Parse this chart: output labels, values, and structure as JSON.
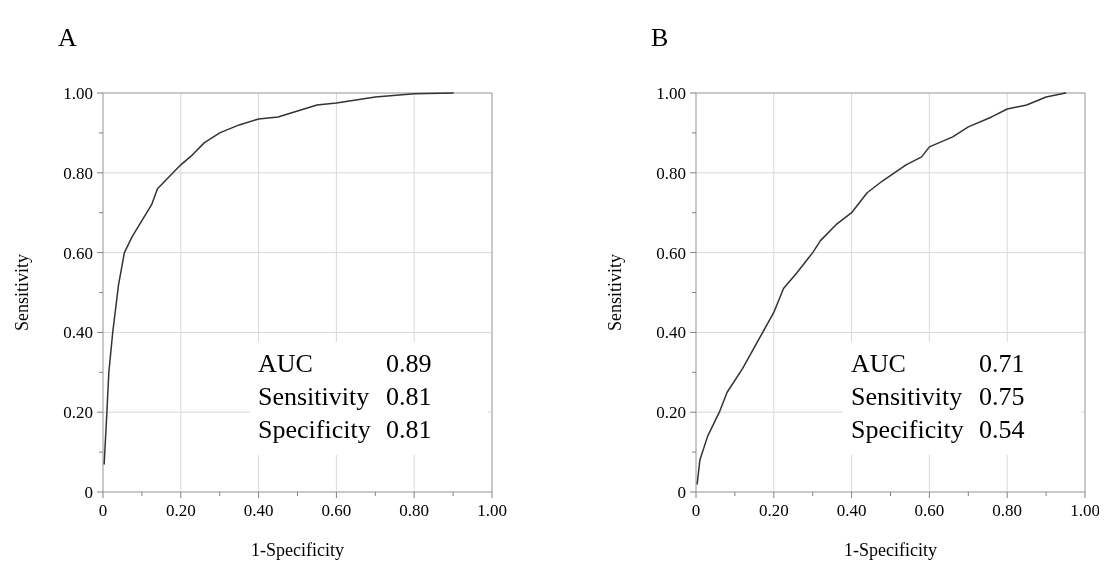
{
  "chart_data": [
    {
      "type": "line",
      "title": "A",
      "xlabel": "1-Specificity",
      "ylabel": "Sensitivity",
      "xlim": [
        0,
        1
      ],
      "ylim": [
        0,
        1
      ],
      "xticks": [
        {
          "value": 0,
          "label": "0"
        },
        {
          "value": 0.1,
          "label": null
        },
        {
          "value": 0.2,
          "label": "0.20"
        },
        {
          "value": 0.3,
          "label": null
        },
        {
          "value": 0.4,
          "label": "0.40"
        },
        {
          "value": 0.5,
          "label": null
        },
        {
          "value": 0.6,
          "label": "0.60"
        },
        {
          "value": 0.7,
          "label": null
        },
        {
          "value": 0.8,
          "label": "0.80"
        },
        {
          "value": 0.9,
          "label": null
        },
        {
          "value": 1,
          "label": "1.00"
        }
      ],
      "yticks": [
        {
          "value": 0,
          "label": "0"
        },
        {
          "value": 0.1,
          "label": null
        },
        {
          "value": 0.2,
          "label": "0.20"
        },
        {
          "value": 0.3,
          "label": null
        },
        {
          "value": 0.4,
          "label": "0.40"
        },
        {
          "value": 0.5,
          "label": null
        },
        {
          "value": 0.6,
          "label": "0.60"
        },
        {
          "value": 0.7,
          "label": null
        },
        {
          "value": 0.8,
          "label": "0.80"
        },
        {
          "value": 0.9,
          "label": null
        },
        {
          "value": 1,
          "label": "1.00"
        }
      ],
      "grid": true,
      "series": [
        {
          "color": "#333333",
          "x": [
            0.003,
            0.01,
            0.015,
            0.025,
            0.04,
            0.055,
            0.075,
            0.1,
            0.125,
            0.14,
            0.17,
            0.2,
            0.23,
            0.26,
            0.3,
            0.35,
            0.4,
            0.45,
            0.5,
            0.55,
            0.6,
            0.7,
            0.8,
            0.9
          ],
          "values": [
            0.07,
            0.2,
            0.3,
            0.4,
            0.52,
            0.6,
            0.64,
            0.68,
            0.72,
            0.76,
            0.79,
            0.82,
            0.845,
            0.875,
            0.9,
            0.92,
            0.935,
            0.94,
            0.955,
            0.97,
            0.975,
            0.99,
            0.998,
            1.0
          ]
        }
      ],
      "annotations": [
        "AUC",
        "0.89",
        "Sensitivity",
        "0.81",
        "Specificity",
        "0.81"
      ]
    },
    {
      "type": "line",
      "title": "B",
      "xlabel": "1-Specificity",
      "ylabel": "Sensitivity",
      "xlim": [
        0,
        1
      ],
      "ylim": [
        0,
        1
      ],
      "xticks": [
        {
          "value": 0,
          "label": "0"
        },
        {
          "value": 0.1,
          "label": null
        },
        {
          "value": 0.2,
          "label": "0.20"
        },
        {
          "value": 0.3,
          "label": null
        },
        {
          "value": 0.4,
          "label": "0.40"
        },
        {
          "value": 0.5,
          "label": null
        },
        {
          "value": 0.6,
          "label": "0.60"
        },
        {
          "value": 0.7,
          "label": null
        },
        {
          "value": 0.8,
          "label": "0.80"
        },
        {
          "value": 0.9,
          "label": null
        },
        {
          "value": 1,
          "label": "1.00"
        }
      ],
      "yticks": [
        {
          "value": 0,
          "label": "0"
        },
        {
          "value": 0.1,
          "label": null
        },
        {
          "value": 0.2,
          "label": "0.20"
        },
        {
          "value": 0.3,
          "label": null
        },
        {
          "value": 0.4,
          "label": "0.40"
        },
        {
          "value": 0.5,
          "label": null
        },
        {
          "value": 0.6,
          "label": "0.60"
        },
        {
          "value": 0.7,
          "label": null
        },
        {
          "value": 0.8,
          "label": "0.80"
        },
        {
          "value": 0.9,
          "label": null
        },
        {
          "value": 1,
          "label": "1.00"
        }
      ],
      "grid": true,
      "series": [
        {
          "color": "#333333",
          "x": [
            0.003,
            0.01,
            0.03,
            0.06,
            0.08,
            0.12,
            0.16,
            0.2,
            0.225,
            0.26,
            0.3,
            0.32,
            0.36,
            0.4,
            0.44,
            0.48,
            0.54,
            0.58,
            0.6,
            0.66,
            0.7,
            0.76,
            0.8,
            0.85,
            0.9,
            0.95
          ],
          "values": [
            0.02,
            0.08,
            0.14,
            0.2,
            0.25,
            0.31,
            0.38,
            0.45,
            0.51,
            0.55,
            0.6,
            0.63,
            0.67,
            0.7,
            0.75,
            0.78,
            0.82,
            0.84,
            0.865,
            0.89,
            0.915,
            0.94,
            0.96,
            0.97,
            0.99,
            1.0
          ]
        }
      ],
      "annotations": [
        "AUC",
        "0.71",
        "Sensitivity",
        "0.75",
        "Specificity",
        "0.54"
      ]
    }
  ]
}
